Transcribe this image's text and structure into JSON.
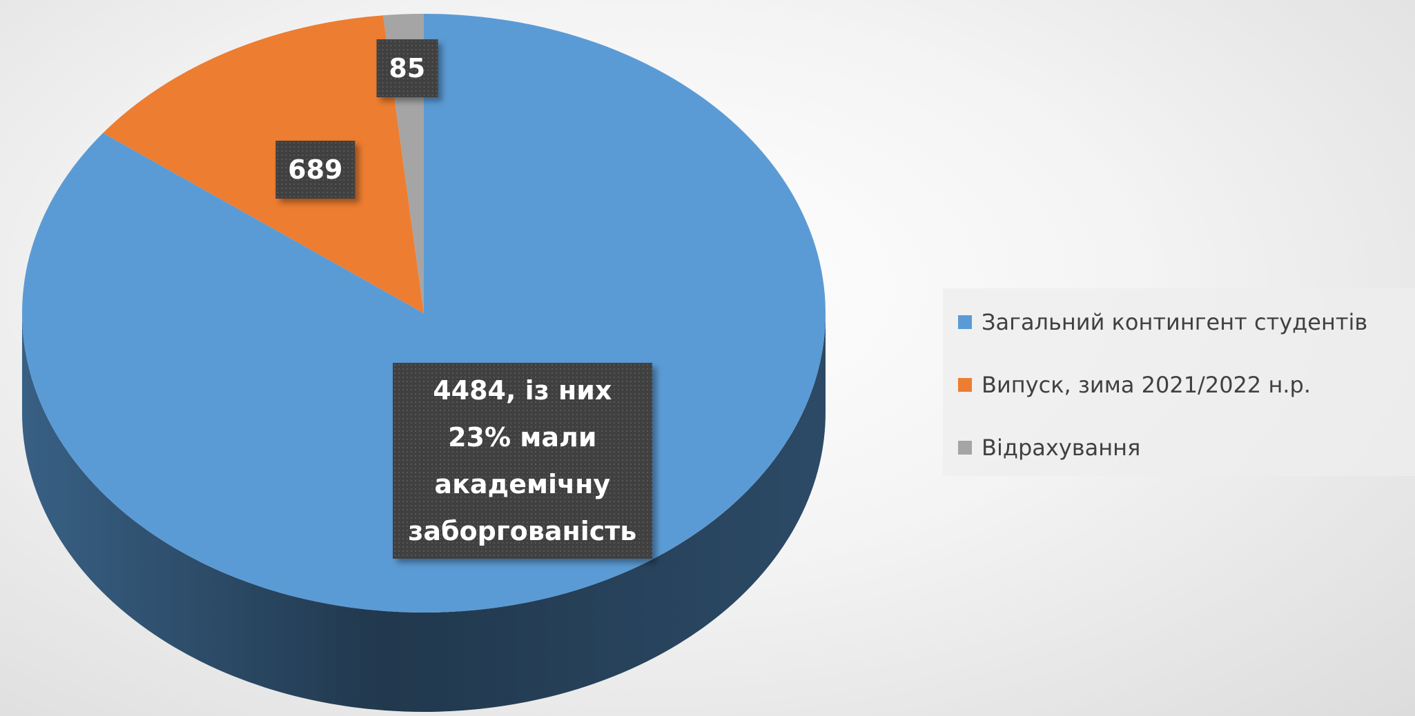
{
  "chart_data": {
    "type": "pie",
    "categories": [
      "Загальний контингент студентів",
      "Випуск, зима 2021/2022 н.р.",
      "Відрахування"
    ],
    "values": [
      4484,
      689,
      85
    ],
    "value_labels": [
      "4484, із них 23% мали академічну заборгованість",
      "689",
      "85"
    ],
    "colors": [
      "#5b9bd5",
      "#ed7d31",
      "#a5a5a5"
    ],
    "legend": "right",
    "three_d": true
  }
}
